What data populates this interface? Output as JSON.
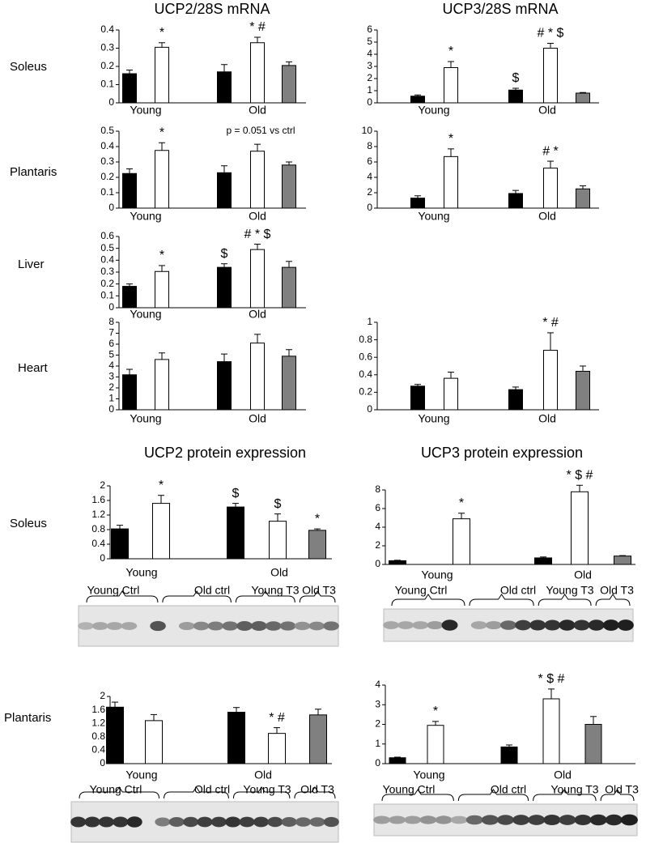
{
  "titles": [
    "UCP2/28S mRNA",
    "UCP3/28S mRNA",
    "UCP2 protein expression",
    "UCP3 protein expression"
  ],
  "row_labels": [
    "Soleus",
    "Plantaris",
    "Liver",
    "Heart",
    "Soleus",
    "Plantaris"
  ],
  "chart_data": [
    {
      "type": "bar",
      "groups": [
        "Young",
        "Old"
      ],
      "values": [
        0.16,
        0.305,
        0.17,
        0.33,
        0.205
      ],
      "errors": [
        0.02,
        0.025,
        0.04,
        0.03,
        0.02
      ],
      "colors": [
        "#000000",
        "#ffffff",
        "#000000",
        "#ffffff",
        "#808080"
      ],
      "annotations": [
        null,
        "*",
        null,
        "* #",
        null
      ],
      "ylim": [
        0,
        0.4
      ],
      "yticks": [
        0,
        0.1,
        0.2,
        0.3,
        0.4
      ]
    },
    {
      "type": "bar",
      "groups": [
        "Young",
        "Old"
      ],
      "values": [
        0.55,
        2.9,
        1.05,
        4.5,
        0.8
      ],
      "errors": [
        0.1,
        0.5,
        0.15,
        0.4,
        0.05
      ],
      "colors": [
        "#000000",
        "#ffffff",
        "#000000",
        "#ffffff",
        "#808080"
      ],
      "annotations": [
        null,
        "*",
        "$",
        "# * $",
        null
      ],
      "ylim": [
        0,
        6
      ],
      "yticks": [
        0,
        1,
        2,
        3,
        4,
        5,
        6
      ]
    },
    {
      "type": "bar",
      "groups": [
        "Young",
        "Old"
      ],
      "values": [
        0.225,
        0.375,
        0.23,
        0.37,
        0.28
      ],
      "errors": [
        0.03,
        0.05,
        0.045,
        0.045,
        0.02
      ],
      "colors": [
        "#000000",
        "#ffffff",
        "#000000",
        "#ffffff",
        "#808080"
      ],
      "annotations": [
        null,
        "*",
        null,
        null,
        null
      ],
      "note": "p = 0.051 vs ctrl",
      "ylim": [
        0,
        0.5
      ],
      "yticks": [
        0,
        0.1,
        0.2,
        0.3,
        0.4,
        0.5
      ]
    },
    {
      "type": "bar",
      "groups": [
        "Young",
        "Old"
      ],
      "values": [
        1.3,
        6.7,
        1.9,
        5.2,
        2.5
      ],
      "errors": [
        0.3,
        1.0,
        0.4,
        0.9,
        0.4
      ],
      "colors": [
        "#000000",
        "#ffffff",
        "#000000",
        "#ffffff",
        "#808080"
      ],
      "annotations": [
        null,
        "*",
        null,
        "# *",
        null
      ],
      "ylim": [
        0,
        10
      ],
      "yticks": [
        0,
        2,
        4,
        6,
        8,
        10
      ]
    },
    {
      "type": "bar",
      "groups": [
        "Young",
        "Old"
      ],
      "values": [
        0.18,
        0.305,
        0.34,
        0.49,
        0.34
      ],
      "errors": [
        0.02,
        0.05,
        0.03,
        0.045,
        0.05
      ],
      "colors": [
        "#000000",
        "#ffffff",
        "#000000",
        "#ffffff",
        "#808080"
      ],
      "annotations": [
        null,
        "*",
        "$",
        "# * $",
        null
      ],
      "ylim": [
        0,
        0.6
      ],
      "yticks": [
        0,
        0.1,
        0.2,
        0.3,
        0.4,
        0.5,
        0.6
      ]
    },
    {
      "type": "bar",
      "groups": [
        "Young",
        "Old"
      ],
      "values": [
        3.2,
        4.6,
        4.4,
        6.1,
        4.9
      ],
      "errors": [
        0.5,
        0.6,
        0.7,
        0.8,
        0.6
      ],
      "colors": [
        "#000000",
        "#ffffff",
        "#000000",
        "#ffffff",
        "#808080"
      ],
      "annotations": [
        null,
        null,
        null,
        null,
        null
      ],
      "ylim": [
        0,
        8
      ],
      "yticks": [
        0,
        1,
        2,
        3,
        4,
        5,
        6,
        7,
        8
      ]
    },
    {
      "type": "bar",
      "groups": [
        "Young",
        "Old"
      ],
      "values": [
        0.27,
        0.36,
        0.23,
        0.68,
        0.44
      ],
      "errors": [
        0.02,
        0.07,
        0.03,
        0.2,
        0.06
      ],
      "colors": [
        "#000000",
        "#ffffff",
        "#000000",
        "#ffffff",
        "#808080"
      ],
      "annotations": [
        null,
        null,
        null,
        "* #",
        null
      ],
      "ylim": [
        0,
        1
      ],
      "yticks": [
        0,
        0.2,
        0.4,
        0.6,
        0.8,
        1
      ]
    },
    {
      "type": "bar",
      "groups": [
        "Young",
        "Old"
      ],
      "values": [
        0.82,
        1.52,
        1.42,
        1.03,
        0.78
      ],
      "errors": [
        0.1,
        0.22,
        0.1,
        0.2,
        0.04
      ],
      "colors": [
        "#000000",
        "#ffffff",
        "#000000",
        "#ffffff",
        "#808080"
      ],
      "annotations": [
        null,
        "*",
        "$",
        "$",
        "*"
      ],
      "ylim": [
        0,
        2
      ],
      "yticks": [
        0,
        0.4,
        0.8,
        1.2,
        1.6,
        2
      ]
    },
    {
      "type": "bar",
      "groups": [
        "Young",
        "Old"
      ],
      "values": [
        0.4,
        4.9,
        0.7,
        7.8,
        0.9
      ],
      "errors": [
        0.05,
        0.6,
        0.1,
        0.7,
        0.05
      ],
      "colors": [
        "#000000",
        "#ffffff",
        "#000000",
        "#ffffff",
        "#808080"
      ],
      "annotations": [
        null,
        "*",
        null,
        "* $ #",
        null
      ],
      "ylim": [
        0,
        8
      ],
      "yticks": [
        0,
        2,
        4,
        6,
        8
      ]
    },
    {
      "type": "bar",
      "groups": [
        "Young",
        "Old"
      ],
      "values": [
        1.68,
        1.28,
        1.53,
        0.9,
        1.45
      ],
      "errors": [
        0.15,
        0.18,
        0.14,
        0.17,
        0.17
      ],
      "colors": [
        "#000000",
        "#ffffff",
        "#000000",
        "#ffffff",
        "#808080"
      ],
      "annotations": [
        null,
        null,
        null,
        "* #",
        null
      ],
      "ylim": [
        0,
        2
      ],
      "yticks": [
        0,
        0.4,
        0.8,
        1.2,
        1.6,
        2
      ]
    },
    {
      "type": "bar",
      "groups": [
        "Young",
        "Old"
      ],
      "values": [
        0.3,
        1.95,
        0.85,
        3.3,
        2.0
      ],
      "errors": [
        0.03,
        0.2,
        0.1,
        0.5,
        0.4
      ],
      "colors": [
        "#000000",
        "#ffffff",
        "#000000",
        "#ffffff",
        "#808080"
      ],
      "annotations": [
        null,
        "*",
        null,
        "* $ #",
        null
      ],
      "ylim": [
        0,
        4
      ],
      "yticks": [
        0,
        1,
        2,
        3,
        4
      ]
    }
  ],
  "blots": [
    {
      "labels": [
        "Young Ctrl",
        "Old ctrl",
        "Young T3",
        "Old T3"
      ]
    },
    {
      "labels": [
        "Young Ctrl",
        "Old ctrl",
        "Young T3",
        "Old T3"
      ]
    },
    {
      "labels": [
        "Young Ctrl",
        "Old ctrl",
        "Young T3",
        "Old T3"
      ]
    },
    {
      "labels": [
        "Young Ctrl",
        "Old ctrl",
        "Young T3",
        "Old T3"
      ]
    }
  ]
}
